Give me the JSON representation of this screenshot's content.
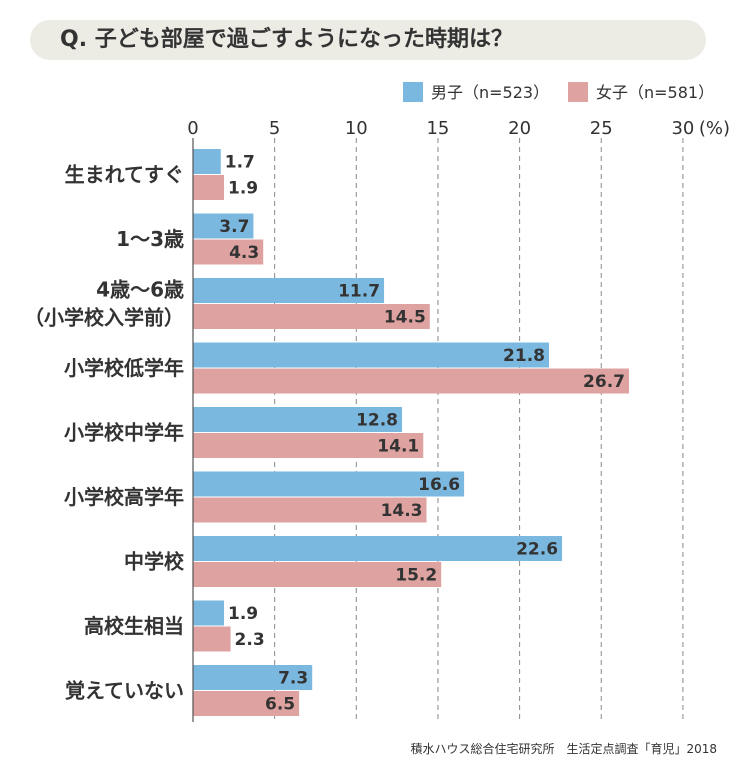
{
  "title": "Q. 子ども部屋で過ごすようになった時期は？",
  "source": "積水ハウス総合住宅研究所　生活定点調査「育児」2018",
  "colors": {
    "boys": "#7ab8e0",
    "girls": "#dea3a1",
    "title_bg": "#ecebe4",
    "grid": "#888888"
  },
  "chart_data": {
    "type": "bar",
    "orientation": "horizontal",
    "categories": [
      [
        "生まれてすぐ"
      ],
      [
        "1〜3歳"
      ],
      [
        "4歳〜6歳",
        "（小学校入学前）"
      ],
      [
        "小学校低学年"
      ],
      [
        "小学校中学年"
      ],
      [
        "小学校高学年"
      ],
      [
        "中学校"
      ],
      [
        "高校生相当"
      ],
      [
        "覚えていない"
      ]
    ],
    "series": [
      {
        "name": "男子（n=523）",
        "values": [
          1.7,
          3.7,
          11.7,
          21.8,
          12.8,
          16.6,
          22.6,
          1.9,
          7.3
        ]
      },
      {
        "name": "女子（n=581）",
        "values": [
          1.9,
          4.3,
          14.5,
          26.7,
          14.1,
          14.3,
          15.2,
          2.3,
          6.5
        ]
      }
    ],
    "xlim": [
      0,
      30
    ],
    "xticks": [
      "0",
      "5",
      "10",
      "15",
      "20",
      "25",
      "30"
    ],
    "unit": "(%)",
    "grid": true,
    "legend_position": "top-right"
  }
}
